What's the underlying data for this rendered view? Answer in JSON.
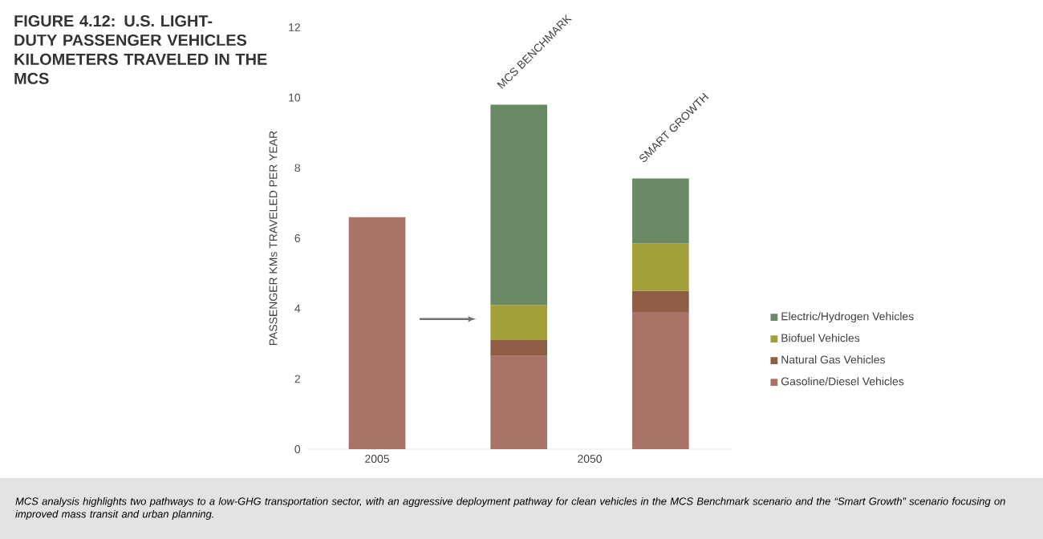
{
  "chart_data": {
    "type": "bar",
    "stacked": true,
    "title": "FIGURE 4.12: U.S. LIGHT-DUTY PASSENGER VEHICLES KILOMETERS TRAVELED IN THE MCS",
    "ylabel": "PASSENGER KMs TRAVELED PER YEAR",
    "categories": [
      "2005",
      "MCS BENCHMARK",
      "SMART GROWTH"
    ],
    "series": [
      {
        "name": "Gasoline/Diesel Vehicles",
        "color": "#a87468",
        "values": [
          6.6,
          2.65,
          3.9
        ]
      },
      {
        "name": "Natural Gas Vehicles",
        "color": "#8e5e44",
        "values": [
          null,
          0.45,
          0.6
        ]
      },
      {
        "name": "Biofuel Vehicles",
        "color": "#a3a03a",
        "values": [
          null,
          1.0,
          1.35
        ]
      },
      {
        "name": "Electric/Hydrogen Vehicles",
        "color": "#6a8a66",
        "values": [
          null,
          5.7,
          1.85
        ]
      }
    ],
    "ylim": [
      0,
      12
    ],
    "yticks": [
      0,
      2,
      4,
      6,
      8,
      10,
      12
    ],
    "legend": "right",
    "annotations": [
      "2050",
      "MCS analysis highlights two pathways to a low-GHG transportation sector, with an aggressive deployment pathway for clean vehicles in the MCS Benchmark scenario and the “Smart Growth” scenario focusing on improved mass transit and urban planning."
    ]
  }
}
